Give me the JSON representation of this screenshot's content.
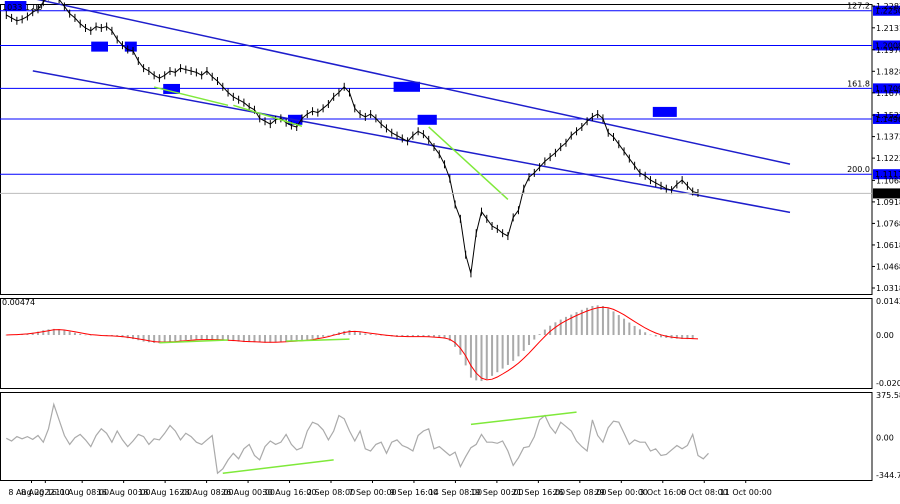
{
  "chart_data": {
    "type": "line",
    "main": {
      "symbol_readout": "1033 1.09",
      "price_ticks": [
        "1.2283",
        "1.2131",
        "1.1978",
        "1.1828",
        "1.1678",
        "1.1523",
        "1.1373",
        "1.1223",
        "1.1068",
        "1.0918",
        "1.0768",
        "1.0618",
        "1.0468",
        "1.0318"
      ],
      "price_range": [
        1.0318,
        1.2283
      ],
      "levels": [
        {
          "label": "1.2250",
          "value": 1.225,
          "fib": "127.2"
        },
        {
          "label": "1.2008",
          "value": 1.2008
        },
        {
          "label": "1.1709",
          "value": 1.1709,
          "fib": "161.8"
        },
        {
          "label": "1.1496",
          "value": 1.1496
        },
        {
          "label": "1.1111",
          "value": 1.1111,
          "fib": "200.0"
        }
      ],
      "current_price": "1.0977",
      "level_color": "#0000ff",
      "channel_color": "#1e1ecc",
      "divergence_color": "#7fe93a",
      "close": [
        1.222,
        1.22,
        1.218,
        1.219,
        1.221,
        1.224,
        1.226,
        1.231,
        1.235,
        1.236,
        1.233,
        1.228,
        1.223,
        1.22,
        1.216,
        1.213,
        1.211,
        1.214,
        1.213,
        1.214,
        1.211,
        1.205,
        1.201,
        1.198,
        1.197,
        1.19,
        1.185,
        1.183,
        1.18,
        1.178,
        1.18,
        1.183,
        1.182,
        1.185,
        1.184,
        1.183,
        1.182,
        1.18,
        1.183,
        1.179,
        1.176,
        1.172,
        1.168,
        1.165,
        1.163,
        1.161,
        1.158,
        1.156,
        1.15,
        1.148,
        1.146,
        1.149,
        1.15,
        1.147,
        1.145,
        1.144,
        1.15,
        1.153,
        1.155,
        1.154,
        1.157,
        1.16,
        1.165,
        1.168,
        1.172,
        1.168,
        1.157,
        1.153,
        1.151,
        1.153,
        1.15,
        1.146,
        1.143,
        1.14,
        1.138,
        1.136,
        1.134,
        1.138,
        1.141,
        1.139,
        1.135,
        1.13,
        1.125,
        1.118,
        1.108,
        1.09,
        1.08,
        1.055,
        1.042,
        1.07,
        1.085,
        1.08,
        1.075,
        1.073,
        1.07,
        1.068,
        1.081,
        1.086,
        1.101,
        1.109,
        1.112,
        1.116,
        1.12,
        1.123,
        1.126,
        1.13,
        1.133,
        1.138,
        1.141,
        1.144,
        1.148,
        1.151,
        1.153,
        1.15,
        1.14,
        1.137,
        1.132,
        1.127,
        1.122,
        1.117,
        1.112,
        1.11,
        1.107,
        1.105,
        1.103,
        1.101,
        1.1,
        1.104,
        1.107,
        1.103,
        1.099,
        1.098
      ],
      "channel_upper": {
        "x": [
          1,
          140
        ],
        "y": [
          1.235,
          1.1195
        ]
      },
      "channel_lower": {
        "x": [
          1,
          140
        ],
        "y": [
          1.1845,
          1.0859
        ]
      },
      "price_divergences": [
        {
          "x": [
            28,
            42
          ],
          "y": [
            1.1718,
            1.1591
          ]
        },
        {
          "x": [
            43,
            56
          ],
          "y": [
            1.1591,
            1.1445
          ]
        },
        {
          "x": [
            80,
            95
          ],
          "y": [
            1.144,
            1.0935
          ]
        }
      ]
    },
    "macd": {
      "ticks": [
        "0.00474",
        "0.01427",
        "0.00",
        "-0.02049"
      ],
      "range": [
        -0.0216,
        0.015
      ],
      "histogram": [
        0.0001,
        0.0002,
        0.0002,
        0.0003,
        0.0007,
        0.001,
        0.0015,
        0.0021,
        0.0025,
        0.0027,
        0.0026,
        0.0021,
        0.0015,
        0.001,
        0.0005,
        0.0001,
        -0.0001,
        -0.0002,
        -0.0003,
        -0.0004,
        -0.0005,
        -0.0006,
        -0.001,
        -0.0014,
        -0.0018,
        -0.0023,
        -0.0029,
        -0.0032,
        -0.0035,
        -0.0036,
        -0.0033,
        -0.003,
        -0.0028,
        -0.0025,
        -0.0022,
        -0.002,
        -0.0019,
        -0.0019,
        -0.002,
        -0.002,
        -0.0021,
        -0.0023,
        -0.0025,
        -0.0027,
        -0.0029,
        -0.0031,
        -0.0031,
        -0.0032,
        -0.0033,
        -0.0034,
        -0.0034,
        -0.0033,
        -0.0031,
        -0.0029,
        -0.0027,
        -0.0026,
        -0.0024,
        -0.0021,
        -0.0017,
        -0.0013,
        -0.0008,
        -0.0002,
        0.0005,
        0.0012,
        0.0018,
        0.0022,
        0.0018,
        0.0012,
        0.0007,
        0.0004,
        0.0001,
        -0.0002,
        -0.0004,
        -0.0006,
        -0.0008,
        -0.0008,
        -0.0008,
        -0.0007,
        -0.0006,
        -0.0007,
        -0.0008,
        -0.001,
        -0.0013,
        -0.0016,
        -0.0026,
        -0.0052,
        -0.0087,
        -0.0134,
        -0.0188,
        -0.02,
        -0.0203,
        -0.0194,
        -0.018,
        -0.0164,
        -0.0148,
        -0.0132,
        -0.0114,
        -0.0094,
        -0.007,
        -0.0044,
        -0.002,
        0.0004,
        0.0024,
        0.0041,
        0.0056,
        0.0068,
        0.008,
        0.009,
        0.0101,
        0.0111,
        0.012,
        0.0128,
        0.0131,
        0.0128,
        0.0118,
        0.0104,
        0.0088,
        0.0072,
        0.0055,
        0.004,
        0.0025,
        0.0012,
        0.0002,
        -0.0006,
        -0.001,
        -0.0013,
        -0.0015,
        -0.0016,
        -0.0017,
        -0.0018,
        -0.0018
      ],
      "signal": [
        0.0,
        0.0001,
        0.0002,
        0.0003,
        0.0005,
        0.0008,
        0.0011,
        0.0015,
        0.0019,
        0.0023,
        0.0024,
        0.0022,
        0.0018,
        0.0014,
        0.001,
        0.0006,
        0.0002,
        0.0,
        -0.0002,
        -0.0003,
        -0.0004,
        -0.0005,
        -0.0007,
        -0.001,
        -0.0013,
        -0.0017,
        -0.0021,
        -0.0025,
        -0.0029,
        -0.0031,
        -0.0031,
        -0.003,
        -0.0029,
        -0.0027,
        -0.0025,
        -0.0023,
        -0.0021,
        -0.002,
        -0.002,
        -0.002,
        -0.002,
        -0.0021,
        -0.0023,
        -0.0024,
        -0.0026,
        -0.0028,
        -0.0029,
        -0.003,
        -0.0031,
        -0.0032,
        -0.0032,
        -0.0032,
        -0.0031,
        -0.003,
        -0.0028,
        -0.0027,
        -0.0025,
        -0.0023,
        -0.002,
        -0.0016,
        -0.0012,
        -0.0007,
        -0.0001,
        0.0005,
        0.0011,
        0.0015,
        0.0016,
        0.0014,
        0.0011,
        0.0008,
        0.0005,
        0.0002,
        -0.0001,
        -0.0003,
        -0.0005,
        -0.0006,
        -0.0007,
        -0.0007,
        -0.0007,
        -0.0007,
        -0.0008,
        -0.0009,
        -0.0011,
        -0.0013,
        -0.0019,
        -0.0034,
        -0.0058,
        -0.0092,
        -0.0135,
        -0.0168,
        -0.019,
        -0.0198,
        -0.0195,
        -0.0185,
        -0.0172,
        -0.0158,
        -0.0142,
        -0.0124,
        -0.0103,
        -0.008,
        -0.0055,
        -0.003,
        -0.0006,
        0.0016,
        0.0034,
        0.005,
        0.0063,
        0.0075,
        0.0086,
        0.0096,
        0.0106,
        0.0114,
        0.012,
        0.0122,
        0.012,
        0.0113,
        0.0102,
        0.0089,
        0.0074,
        0.0059,
        0.0045,
        0.0031,
        0.0019,
        0.0009,
        0.0001,
        -0.0005,
        -0.0009,
        -0.0012,
        -0.0014,
        -0.0015,
        -0.0016,
        -0.0017
      ],
      "divergences": [
        {
          "x": [
            29,
            42
          ],
          "y": [
            -0.0034,
            -0.0022
          ]
        },
        {
          "x": [
            53,
            65
          ],
          "y": [
            -0.0027,
            -0.0018
          ]
        }
      ],
      "histogram_color": "#aaaaaa",
      "signal_color": "#ff0000"
    },
    "cci": {
      "ticks": [
        "375.5808",
        "0.00",
        "-344.798"
      ],
      "range": [
        -344.798,
        375.5808
      ],
      "values": [
        -5,
        -30,
        10,
        -10,
        10,
        -15,
        20,
        -40,
        80,
        300,
        160,
        20,
        -60,
        0,
        30,
        -20,
        -80,
        20,
        80,
        40,
        -40,
        60,
        -20,
        -80,
        -30,
        30,
        10,
        -60,
        -10,
        -20,
        40,
        110,
        60,
        -20,
        40,
        10,
        -40,
        -60,
        -20,
        20,
        -320,
        -280,
        -200,
        -140,
        -190,
        -100,
        -60,
        -160,
        -200,
        -80,
        -30,
        -60,
        -40,
        30,
        -60,
        -110,
        -90,
        60,
        140,
        120,
        70,
        -20,
        60,
        200,
        170,
        60,
        -30,
        60,
        -100,
        -120,
        -60,
        -40,
        -140,
        -40,
        -20,
        -70,
        -90,
        -120,
        20,
        60,
        80,
        -100,
        -80,
        -120,
        -160,
        -130,
        -260,
        -170,
        -90,
        -60,
        30,
        -40,
        -40,
        -50,
        -30,
        -120,
        -250,
        -180,
        -90,
        -80,
        10,
        160,
        200,
        100,
        40,
        140,
        100,
        60,
        -30,
        -80,
        -120,
        160,
        20,
        -40,
        90,
        150,
        140,
        40,
        -60,
        -20,
        -40,
        -40,
        -120,
        -100,
        -160,
        -150,
        -110,
        -70,
        -100,
        -70,
        30,
        -160,
        -190,
        -140
      ],
      "divergences": [
        {
          "x": [
            41,
            62
          ],
          "y": [
            -320,
            -200
          ]
        },
        {
          "x": [
            88,
            108
          ],
          "y": [
            120,
            230
          ]
        }
      ],
      "line_color": "#aaaaaa"
    },
    "x_ticks": [
      {
        "bar": 1,
        "label": "8 Aug 2022"
      },
      {
        "bar": 4,
        "label": "8 Aug 16:00"
      },
      {
        "bar": 12,
        "label": "11 Aug 08:00"
      },
      {
        "bar": 21,
        "label": "16 Aug 00:00"
      },
      {
        "bar": 30,
        "label": "18 Aug 16:00"
      },
      {
        "bar": 39,
        "label": "23 Aug 08:00"
      },
      {
        "bar": 48,
        "label": "26 Aug 00:00"
      },
      {
        "bar": 57,
        "label": "30 Aug 16:00"
      },
      {
        "bar": 66,
        "label": "2 Sep 08:00"
      },
      {
        "bar": 75,
        "label": "7 Sep 00:00"
      },
      {
        "bar": 84,
        "label": "9 Sep 16:00"
      },
      {
        "bar": 93,
        "label": "14 Sep 08:00"
      },
      {
        "bar": 102,
        "label": "19 Sep 00:00"
      },
      {
        "bar": 111,
        "label": "21 Sep 16:00"
      },
      {
        "bar": 120,
        "label": "26 Sep 08:00"
      },
      {
        "bar": 129,
        "label": "29 Sep 00:00"
      },
      {
        "bar": 138,
        "label": "3 Oct 16:00"
      },
      {
        "bar": 147,
        "label": "6 Oct 08:00"
      },
      {
        "bar": 156,
        "label": "11 Oct 00:00"
      }
    ]
  }
}
